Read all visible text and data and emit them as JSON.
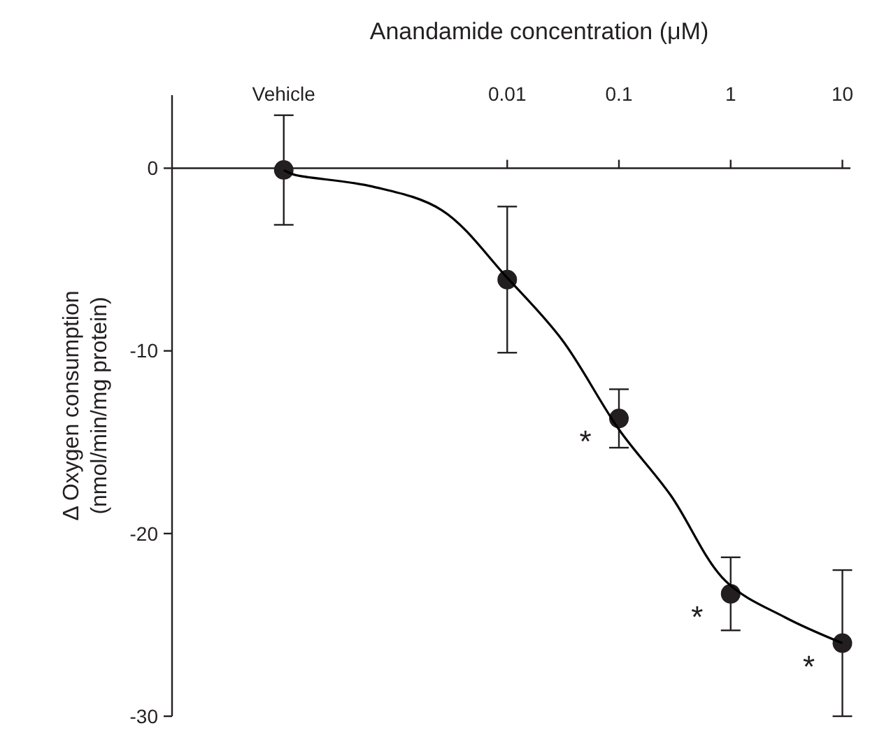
{
  "chart_data": {
    "type": "scatter",
    "xlabel": "Anandamide concentration (μM)",
    "ylabel": "Δ Oxygen consumption\n(nmol/min/mg protein)",
    "log": "x",
    "xlim": [
      1e-05,
      11.8
    ],
    "xticks": [
      {
        "value": 0.0001,
        "label": "Vehicle"
      },
      0.01,
      0.1,
      1,
      10
    ],
    "ylim": [
      -30,
      4
    ],
    "yticks": [
      0,
      -10,
      -20,
      -30
    ],
    "series": [
      {
        "marker": "circle",
        "color": "#231f20",
        "x": [
          0.0001,
          0.01,
          0.1,
          1,
          10
        ],
        "values": [
          -0.1,
          -6.1,
          -13.7,
          -23.3,
          -26.0
        ],
        "errors": [
          3,
          4,
          1.6,
          2,
          4
        ]
      },
      {
        "type": "line",
        "color": "#000000",
        "line_style": "solid",
        "x": [
          0.0001,
          0.000123,
          0.00062,
          0.0026,
          0.01,
          0.031,
          0.1,
          0.29,
          0.9,
          3.1,
          10
        ],
        "values": [
          -0.1,
          -0.35,
          -1.0,
          -2.3,
          -6.0,
          -9.4,
          -14.3,
          -17.9,
          -22.6,
          -24.6,
          -26.0
        ]
      }
    ],
    "annotations": [
      {
        "text": "*",
        "x": 0.1,
        "y": -13.7
      },
      {
        "text": "*",
        "x": 1,
        "y": -23.3
      },
      {
        "text": "*",
        "x": 10,
        "y": -26.0
      }
    ]
  }
}
